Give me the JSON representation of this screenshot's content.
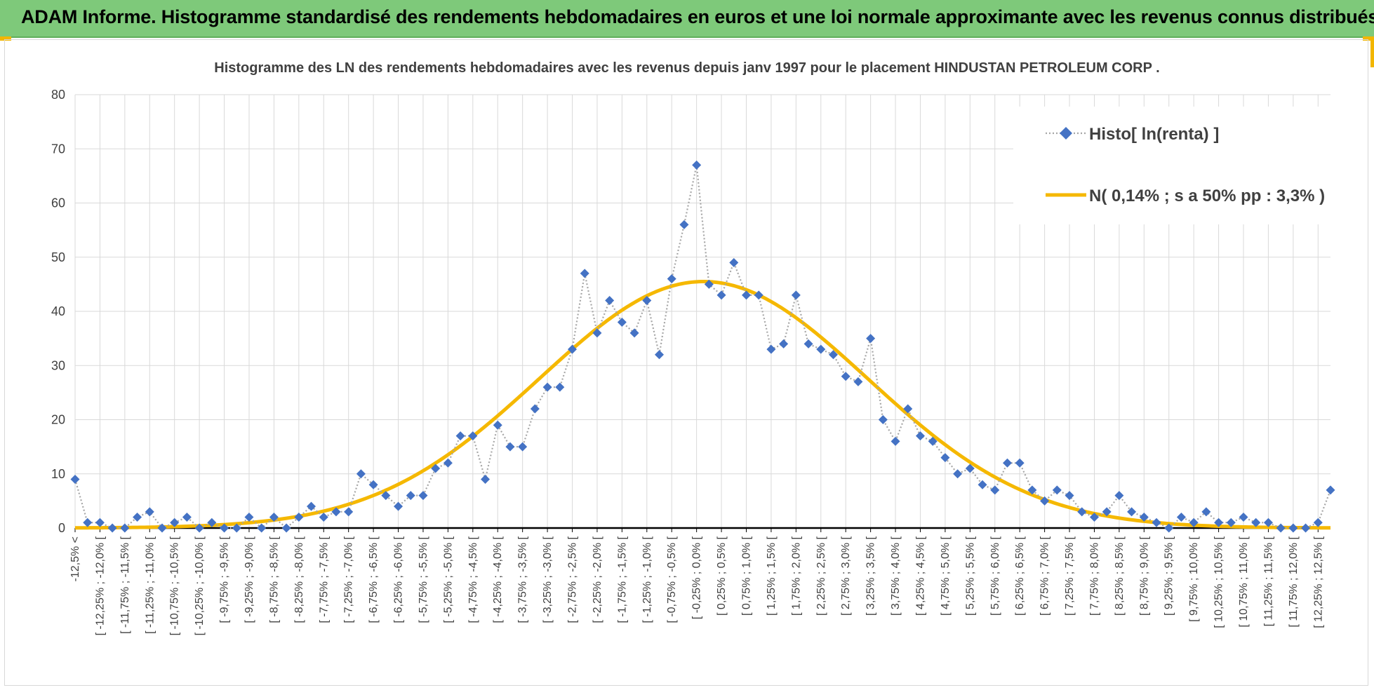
{
  "page": {
    "banner_title": "ADAM Informe. Histogramme standardisé des rendements hebdomadaires en euros et une loi normale approximante avec les revenus connus distribués"
  },
  "colors": {
    "banner": "#7ec97a",
    "accent": "#f2b600",
    "histogram_series": "#4472c4",
    "normal_curve": "#f5b800",
    "grid": "#d9d9d9"
  },
  "chart_data": {
    "type": "line",
    "title": "Histogramme des LN des rendements hebdomadaires avec les revenus depuis janv 1997 pour le placement HINDUSTAN PETROLEUM CORP .",
    "xlabel": "",
    "ylabel": "",
    "ylim": [
      0,
      80
    ],
    "yticks": [
      0,
      10,
      20,
      30,
      40,
      50,
      60,
      70,
      80
    ],
    "grid": true,
    "legend_position": "top-right",
    "categories": [
      "-12,5% <",
      "[ -12,25% ; -12,0% [",
      "[ -11,75% ; -11,5% [",
      "[ -11,25% ; -11,0% [",
      "[ -10,75% ; -10,5% [",
      "[ -10,25% ; -10,0% [",
      "[ -9,75% ; -9,5% [",
      "[ -9,25% ; -9,0% [",
      "[ -8,75% ; -8,5% [",
      "[ -8,25% ; -8,0% [",
      "[ -7,75% ; -7,5% [",
      "[ -7,25% ; -7,0% [",
      "[ -6,75% ; -6,5% [",
      "[ -6,25% ; -6,0% [",
      "[ -5,75% ; -5,5% [",
      "[ -5,25% ; -5,0% [",
      "[ -4,75% ; -4,5% [",
      "[ -4,25% ; -4,0% [",
      "[ -3,75% ; -3,5% [",
      "[ -3,25% ; -3,0% [",
      "[ -2,75% ; -2,5% [",
      "[ -2,25% ; -2,0% [",
      "[ -1,75% ; -1,5% [",
      "[ -1,25% ; -1,0% [",
      "[ -0,75% ; -0,5% [",
      "[ -0,25% ; 0,0% [",
      "[ 0,25% ; 0,5% [",
      "[ 0,75% ; 1,0% [",
      "[ 1,25% ; 1,5% [",
      "[ 1,75% ; 2,0% [",
      "[ 2,25% ; 2,5% [",
      "[ 2,75% ; 3,0% [",
      "[ 3,25% ; 3,5% [",
      "[ 3,75% ; 4,0% [",
      "[ 4,25% ; 4,5% [",
      "[ 4,75% ; 5,0% [",
      "[ 5,25% ; 5,5% [",
      "[ 5,75% ; 6,0% [",
      "[ 6,25% ; 6,5% [",
      "[ 6,75% ; 7,0% [",
      "[ 7,25% ; 7,5% [",
      "[ 7,75% ; 8,0% [",
      "[ 8,25% ; 8,5% [",
      "[ 8,75% ; 9,0% [",
      "[ 9,25% ; 9,5% [",
      "[ 9,75% ; 10,0% [",
      "[ 10,25% ; 10,5% [",
      "[ 10,75% ; 11,0% [",
      "[ 11,25% ; 11,5% [",
      "[ 11,75% ; 12,0% [",
      "[ 12,25% ; 12,5% ["
    ],
    "x_range": [
      -12.5,
      12.75
    ],
    "series": [
      {
        "name": "Histo[ ln(renta) ]",
        "style": "dotted-line-diamond-markers",
        "x": [
          -12.5,
          -12.25,
          -12.0,
          -11.75,
          -11.5,
          -11.25,
          -11.0,
          -10.75,
          -10.5,
          -10.25,
          -10.0,
          -9.75,
          -9.5,
          -9.25,
          -9.0,
          -8.75,
          -8.5,
          -8.25,
          -8.0,
          -7.75,
          -7.5,
          -7.25,
          -7.0,
          -6.75,
          -6.5,
          -6.25,
          -6.0,
          -5.75,
          -5.5,
          -5.25,
          -5.0,
          -4.75,
          -4.5,
          -4.25,
          -4.0,
          -3.75,
          -3.5,
          -3.25,
          -3.0,
          -2.75,
          -2.5,
          -2.25,
          -2.0,
          -1.75,
          -1.5,
          -1.25,
          -1.0,
          -0.75,
          -0.5,
          -0.25,
          0.0,
          0.25,
          0.5,
          0.75,
          1.0,
          1.25,
          1.5,
          1.75,
          2.0,
          2.25,
          2.5,
          2.75,
          3.0,
          3.25,
          3.5,
          3.75,
          4.0,
          4.25,
          4.5,
          4.75,
          5.0,
          5.25,
          5.5,
          5.75,
          6.0,
          6.25,
          6.5,
          6.75,
          7.0,
          7.25,
          7.5,
          7.75,
          8.0,
          8.25,
          8.5,
          8.75,
          9.0,
          9.25,
          9.5,
          9.75,
          10.0,
          10.25,
          10.5,
          10.75,
          11.0,
          11.25,
          11.5,
          11.75,
          12.0,
          12.25,
          12.5,
          12.75
        ],
        "values": [
          9,
          1,
          1,
          0,
          0,
          2,
          3,
          0,
          1,
          2,
          0,
          1,
          0,
          0,
          2,
          0,
          2,
          0,
          2,
          4,
          2,
          3,
          3,
          10,
          8,
          6,
          4,
          6,
          6,
          11,
          12,
          17,
          17,
          9,
          19,
          15,
          15,
          22,
          26,
          26,
          33,
          47,
          36,
          42,
          38,
          36,
          42,
          32,
          46,
          56,
          67,
          45,
          43,
          49,
          43,
          43,
          33,
          34,
          43,
          34,
          33,
          32,
          28,
          27,
          35,
          20,
          16,
          22,
          17,
          16,
          13,
          10,
          11,
          8,
          7,
          12,
          12,
          7,
          5,
          7,
          6,
          3,
          2,
          3,
          6,
          3,
          2,
          1,
          0,
          2,
          1,
          3,
          1,
          1,
          2,
          1,
          1,
          0,
          0,
          0,
          1,
          7
        ]
      },
      {
        "name": "N( 0,14% ; s a 50% pp : 3,3% )",
        "style": "smooth-line",
        "mean": 0.14,
        "sd": 3.3,
        "peak": 45.5
      }
    ]
  }
}
